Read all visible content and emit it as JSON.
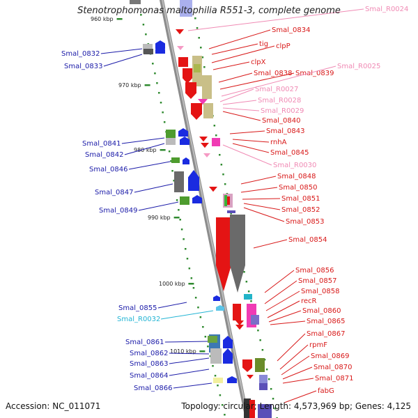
{
  "title": "Stenotrophomonas maltophilia R551-3, complete genome",
  "footer": {
    "accession": "Accession: NC_011071",
    "topology": "Topology: circular; Length: 4,573,969 bp; Genes: 4,125"
  },
  "colors": {
    "right_labels": "#d81818",
    "left_labels": "#1a1aa8",
    "rna_pink": "#f08ab4",
    "rna_cyan": "#22b4d4"
  },
  "scale": [
    {
      "text": "960 kbp"
    },
    {
      "text": "970 kbp"
    },
    {
      "text": "980 kbp"
    },
    {
      "text": "990 kbp"
    },
    {
      "text": "1000 kbp"
    },
    {
      "text": "1010 kbp"
    }
  ],
  "right_labels": [
    {
      "text": "Smal_R0024",
      "color": "pink"
    },
    {
      "text": "Smal_0834",
      "color": "red"
    },
    {
      "text": "tig",
      "color": "red"
    },
    {
      "text": "clpP",
      "color": "red"
    },
    {
      "text": "clpX",
      "color": "red"
    },
    {
      "text": "Smal_0838",
      "color": "red"
    },
    {
      "text": "Smal_0839",
      "color": "red"
    },
    {
      "text": "Smal_R0025",
      "color": "pink"
    },
    {
      "text": "Smal_R0027",
      "color": "pink"
    },
    {
      "text": "Smal_R0028",
      "color": "pink"
    },
    {
      "text": "Smal_R0029",
      "color": "pink"
    },
    {
      "text": "Smal_0840",
      "color": "red"
    },
    {
      "text": "Smal_0843",
      "color": "red"
    },
    {
      "text": "rnhA",
      "color": "red"
    },
    {
      "text": "Smal_0845",
      "color": "red"
    },
    {
      "text": "Smal_R0030",
      "color": "pink"
    },
    {
      "text": "Smal_0848",
      "color": "red"
    },
    {
      "text": "Smal_0850",
      "color": "red"
    },
    {
      "text": "Smal_0851",
      "color": "red"
    },
    {
      "text": "Smal_0852",
      "color": "red"
    },
    {
      "text": "Smal_0853",
      "color": "red"
    },
    {
      "text": "Smal_0854",
      "color": "red"
    },
    {
      "text": "Smal_0856",
      "color": "red"
    },
    {
      "text": "Smal_0857",
      "color": "red"
    },
    {
      "text": "Smal_0858",
      "color": "red"
    },
    {
      "text": "recR",
      "color": "red"
    },
    {
      "text": "Smal_0860",
      "color": "red"
    },
    {
      "text": "Smal_0865",
      "color": "red"
    },
    {
      "text": "Smal_0867",
      "color": "red"
    },
    {
      "text": "rpmF",
      "color": "red"
    },
    {
      "text": "Smal_0869",
      "color": "red"
    },
    {
      "text": "Smal_0870",
      "color": "red"
    },
    {
      "text": "Smal_0871",
      "color": "red"
    },
    {
      "text": "fabG",
      "color": "red"
    }
  ],
  "left_labels": [
    {
      "text": "Smal_0832",
      "color": "blue"
    },
    {
      "text": "Smal_0833",
      "color": "blue"
    },
    {
      "text": "Smal_0841",
      "color": "blue"
    },
    {
      "text": "Smal_0842",
      "color": "blue"
    },
    {
      "text": "Smal_0846",
      "color": "blue"
    },
    {
      "text": "Smal_0847",
      "color": "blue"
    },
    {
      "text": "Smal_0849",
      "color": "blue"
    },
    {
      "text": "Smal_0855",
      "color": "blue"
    },
    {
      "text": "Smal_R0032",
      "color": "cyan"
    },
    {
      "text": "Smal_0861",
      "color": "blue"
    },
    {
      "text": "Smal_0862",
      "color": "blue"
    },
    {
      "text": "Smal_0863",
      "color": "blue"
    },
    {
      "text": "Smal_0864",
      "color": "blue"
    },
    {
      "text": "Smal_0866",
      "color": "blue"
    }
  ]
}
